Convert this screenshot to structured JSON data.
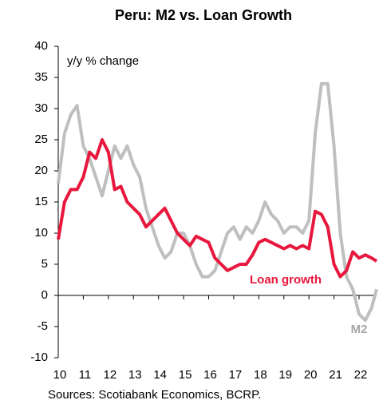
{
  "chart_data": {
    "type": "line",
    "title": "Peru: M2 vs. Loan Growth",
    "annotations": [
      "y/y % change"
    ],
    "source": "Sources: Scotiabank Economics, BCRP.",
    "x": [
      10.0,
      10.25,
      10.5,
      10.75,
      11.0,
      11.25,
      11.5,
      11.75,
      12.0,
      12.25,
      12.5,
      12.75,
      13.0,
      13.25,
      13.5,
      13.75,
      14.0,
      14.25,
      14.5,
      14.75,
      15.0,
      15.25,
      15.5,
      15.75,
      16.0,
      16.25,
      16.5,
      16.75,
      17.0,
      17.25,
      17.5,
      17.75,
      18.0,
      18.25,
      18.5,
      18.75,
      19.0,
      19.25,
      19.5,
      19.75,
      20.0,
      20.25,
      20.5,
      20.75,
      21.0,
      21.25,
      21.5,
      21.75,
      22.0,
      22.25,
      22.5,
      22.7
    ],
    "series": [
      {
        "name": "M2",
        "color": "#bfbfbf",
        "values": [
          18,
          26,
          29,
          30.5,
          24,
          22,
          19,
          16,
          20,
          24,
          22,
          24,
          21,
          19,
          14,
          11,
          8,
          6,
          7,
          10,
          10,
          8,
          5,
          3,
          3,
          4,
          7,
          10,
          11,
          9,
          11,
          10,
          12,
          15,
          13,
          12,
          10,
          11,
          11,
          10,
          12,
          26,
          34,
          34,
          24,
          10,
          3,
          1,
          -3,
          -4,
          -2,
          1
        ]
      },
      {
        "name": "Loan growth",
        "color": "#e8173d",
        "values": [
          9,
          15,
          17,
          17,
          19,
          23,
          22,
          25,
          23,
          17,
          17.5,
          15,
          14,
          13,
          11,
          12,
          13,
          14,
          12,
          10,
          9,
          8,
          9.5,
          9,
          8.5,
          6,
          5,
          4,
          4.5,
          5,
          5,
          6.5,
          8.5,
          9,
          8.5,
          8,
          7.5,
          8,
          7.5,
          8,
          7.5,
          13.5,
          13,
          11,
          5,
          3,
          4,
          7,
          6,
          6.5,
          6,
          5.5
        ]
      }
    ],
    "xlim": [
      10,
      22.7
    ],
    "xticks": [
      10,
      11,
      12,
      13,
      14,
      15,
      16,
      17,
      18,
      19,
      20,
      21,
      22
    ],
    "ylim": [
      -10,
      40
    ],
    "yticks": [
      -10,
      -5,
      0,
      5,
      10,
      15,
      20,
      25,
      30,
      35,
      40
    ],
    "grid": false
  }
}
